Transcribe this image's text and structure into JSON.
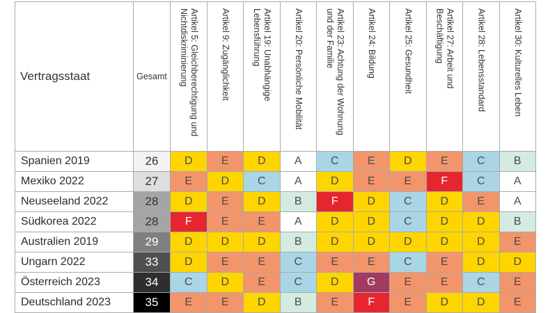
{
  "chart_data": {
    "type": "table",
    "corner_label": "Vertragsstaat",
    "total_label": "Gesamt",
    "columns": [
      "Artikel 5: Gleichberechtigung und\nNichtdiskriminierung",
      "Artikel 9: Zugänglichkeit",
      "Artikel 19: Unabhängige\nLebensführung",
      "Artikel 20: Persönliche Mobilität",
      "Artikel 23: Achtung der Wohnung\nund der Familie",
      "Artikel 24: Bildung",
      "Artikel 25: Gesundheit",
      "Artikel 27: Arbeit und\nBeschäftigung",
      "Artikel 28: Lebensstandard",
      "Artikel 30: Kulturelles Leben"
    ],
    "rows": [
      {
        "state": "Spanien 2019",
        "total": "26",
        "total_bg": "#f3f3f3",
        "total_fg": "#333333",
        "grades": [
          "D",
          "E",
          "D",
          "A",
          "C",
          "E",
          "D",
          "E",
          "C",
          "B"
        ]
      },
      {
        "state": "Mexiko 2022",
        "total": "27",
        "total_bg": "#dedede",
        "total_fg": "#333333",
        "grades": [
          "E",
          "D",
          "C",
          "A",
          "D",
          "E",
          "E",
          "F",
          "C",
          "A"
        ]
      },
      {
        "state": "Neuseeland 2022",
        "total": "28",
        "total_bg": "#a5a5a5",
        "total_fg": "#333333",
        "grades": [
          "D",
          "E",
          "D",
          "B",
          "F",
          "D",
          "C",
          "D",
          "E",
          "A"
        ]
      },
      {
        "state": "Südkorea 2022",
        "total": "28",
        "total_bg": "#a5a5a5",
        "total_fg": "#333333",
        "grades": [
          "F",
          "E",
          "E",
          "A",
          "D",
          "D",
          "C",
          "D",
          "D",
          "B"
        ]
      },
      {
        "state": "Australien 2019",
        "total": "29",
        "total_bg": "#7f7f7f",
        "total_fg": "#ffffff",
        "grades": [
          "D",
          "D",
          "D",
          "B",
          "D",
          "D",
          "D",
          "D",
          "D",
          "E"
        ]
      },
      {
        "state": "Ungarn 2022",
        "total": "33",
        "total_bg": "#4f4f4f",
        "total_fg": "#ffffff",
        "grades": [
          "D",
          "E",
          "E",
          "C",
          "E",
          "E",
          "C",
          "E",
          "D",
          "D"
        ]
      },
      {
        "state": "Österreich 2023",
        "total": "34",
        "total_bg": "#2e2e2e",
        "total_fg": "#ffffff",
        "grades": [
          "C",
          "D",
          "E",
          "C",
          "D",
          "G",
          "E",
          "E",
          "C",
          "E"
        ]
      },
      {
        "state": "Deutschland 2023",
        "total": "35",
        "total_bg": "#000000",
        "total_fg": "#ffffff",
        "grades": [
          "E",
          "E",
          "D",
          "B",
          "E",
          "F",
          "E",
          "D",
          "D",
          "E"
        ]
      }
    ]
  },
  "grade_colors": {
    "A": "#ffffff",
    "B": "#d3ebe1",
    "C": "#a9d6e6",
    "D": "#ffd500",
    "E": "#f3956b",
    "F": "#e5262e",
    "G": "#a33a5f"
  },
  "grade_text_colors": {
    "A": "#4a4a4a",
    "B": "#4a4a4a",
    "C": "#4a4a4a",
    "D": "#4a4a4a",
    "E": "#4a4a4a",
    "F": "#ffffff",
    "G": "#ffffff"
  },
  "border_color": "#a9a9a9"
}
